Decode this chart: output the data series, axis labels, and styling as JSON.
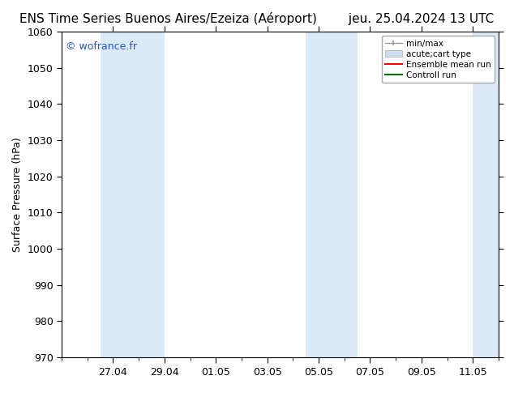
{
  "title_left": "ENS Time Series Buenos Aires/Ezeiza (Aéroport)",
  "title_right": "jeu. 25.04.2024 13 UTC",
  "ylabel": "Surface Pressure (hPa)",
  "ylim": [
    970,
    1060
  ],
  "yticks": [
    970,
    980,
    990,
    1000,
    1010,
    1020,
    1030,
    1040,
    1050,
    1060
  ],
  "xtick_labels": [
    "27.04",
    "29.04",
    "01.05",
    "03.05",
    "05.05",
    "07.05",
    "09.05",
    "11.05"
  ],
  "xtick_positions": [
    2,
    4,
    6,
    8,
    10,
    12,
    14,
    16
  ],
  "xlim": [
    0,
    17
  ],
  "background_color": "#ffffff",
  "plot_bg_color": "#ffffff",
  "shaded_bands": [
    {
      "x_start": 1.5,
      "x_end": 4.0
    },
    {
      "x_start": 9.5,
      "x_end": 11.5
    },
    {
      "x_start": 16.0,
      "x_end": 17.0
    }
  ],
  "shade_color": "#daeaf7",
  "watermark": "© wofrance.fr",
  "watermark_color": "#2255cc",
  "legend_labels": [
    "min/max",
    "acute;cart type",
    "Ensemble mean run",
    "Controll run"
  ],
  "legend_colors": [
    "#999999",
    "#ccddf0",
    "#ff0000",
    "#007700"
  ],
  "title_fontsize": 11,
  "tick_fontsize": 9,
  "ylabel_fontsize": 9
}
